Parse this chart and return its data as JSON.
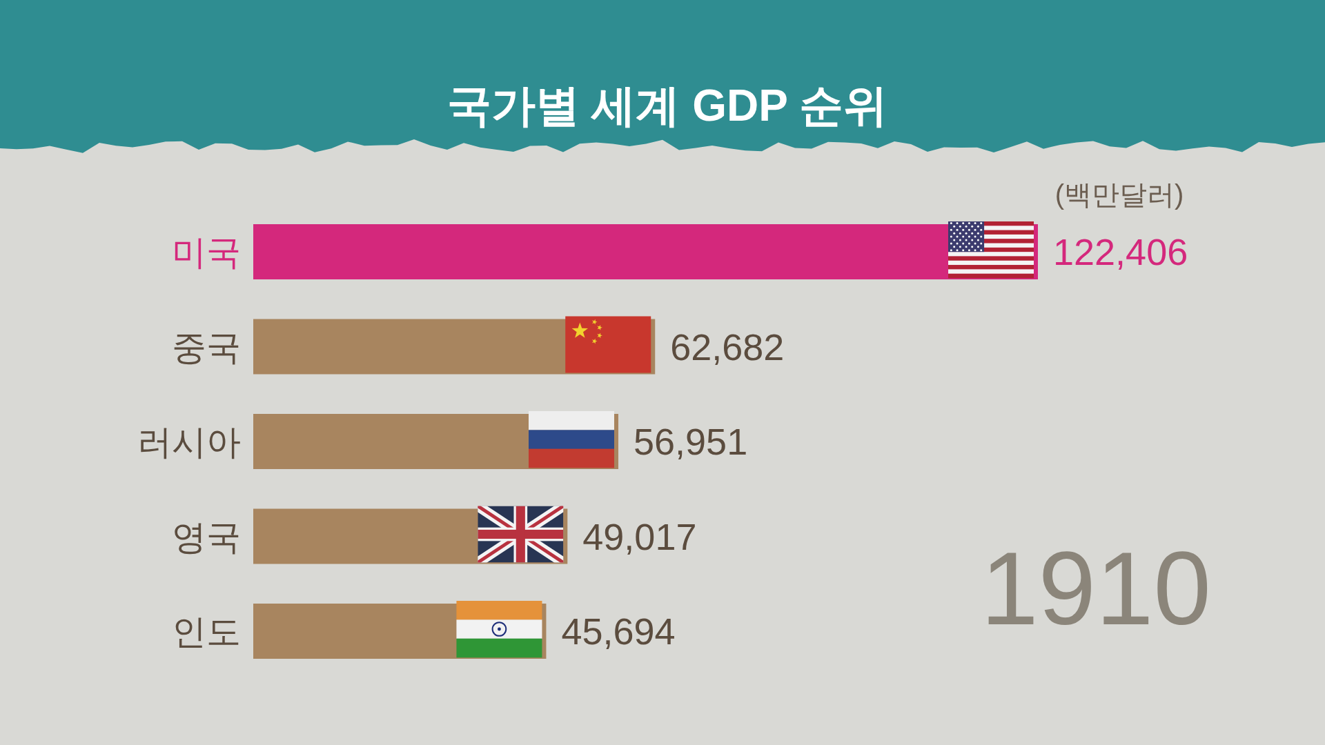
{
  "chart_data": {
    "type": "bar",
    "orientation": "horizontal",
    "title": "국가별 세계 GDP 순위",
    "categories": [
      "미국",
      "중국",
      "러시아",
      "영국",
      "인도"
    ],
    "values": [
      122406,
      62682,
      56951,
      49017,
      45694
    ],
    "colors": [
      "#d4287c",
      "#a8855f",
      "#a8855f",
      "#a8855f",
      "#a8855f"
    ],
    "value_labels": [
      "122,406",
      "62,682",
      "56,951",
      "49,017",
      "45,694"
    ],
    "annotations": [
      "(백만달러)",
      "1910"
    ]
  }
}
